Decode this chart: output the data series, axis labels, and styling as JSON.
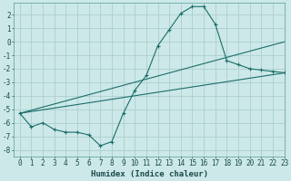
{
  "xlabel": "Humidex (Indice chaleur)",
  "background_color": "#cce8e8",
  "grid_color": "#aecece",
  "line_color": "#1a6e6a",
  "x_data": [
    0,
    1,
    2,
    3,
    4,
    5,
    6,
    7,
    8,
    9,
    10,
    11,
    12,
    13,
    14,
    15,
    16,
    17,
    18,
    19,
    20,
    21,
    22,
    23
  ],
  "y_main": [
    -5.3,
    -6.3,
    -6.0,
    -6.5,
    -6.7,
    -6.7,
    -6.9,
    -7.7,
    -7.4,
    -5.3,
    -3.6,
    -2.5,
    -0.3,
    0.9,
    2.1,
    2.6,
    2.6,
    1.3,
    -1.4,
    -1.7,
    -2.0,
    -2.1,
    -2.2,
    -2.3
  ],
  "y_linear1": [
    -5.3,
    -5.17,
    -5.04,
    -4.91,
    -4.78,
    -4.65,
    -4.52,
    -4.39,
    -4.26,
    -4.13,
    -4.0,
    -3.87,
    -3.74,
    -3.61,
    -3.48,
    -3.35,
    -3.22,
    -3.09,
    -2.96,
    -2.83,
    -2.7,
    -2.57,
    -2.44,
    -2.31
  ],
  "y_linear2": [
    -5.3,
    -5.07,
    -4.84,
    -4.61,
    -4.38,
    -4.15,
    -3.92,
    -3.69,
    -3.46,
    -3.23,
    -3.0,
    -2.77,
    -2.54,
    -2.31,
    -2.08,
    -1.85,
    -1.62,
    -1.39,
    -1.16,
    -0.93,
    -0.7,
    -0.47,
    -0.24,
    -0.01
  ],
  "xlim": [
    -0.5,
    23
  ],
  "ylim": [
    -8.5,
    2.9
  ],
  "yticks": [
    2,
    1,
    0,
    -1,
    -2,
    -3,
    -4,
    -5,
    -6,
    -7,
    -8
  ],
  "xticks": [
    0,
    1,
    2,
    3,
    4,
    5,
    6,
    7,
    8,
    9,
    10,
    11,
    12,
    13,
    14,
    15,
    16,
    17,
    18,
    19,
    20,
    21,
    22,
    23
  ],
  "tick_fontsize": 5.5,
  "xlabel_fontsize": 6.5,
  "marker_size": 3,
  "linewidth": 0.8
}
